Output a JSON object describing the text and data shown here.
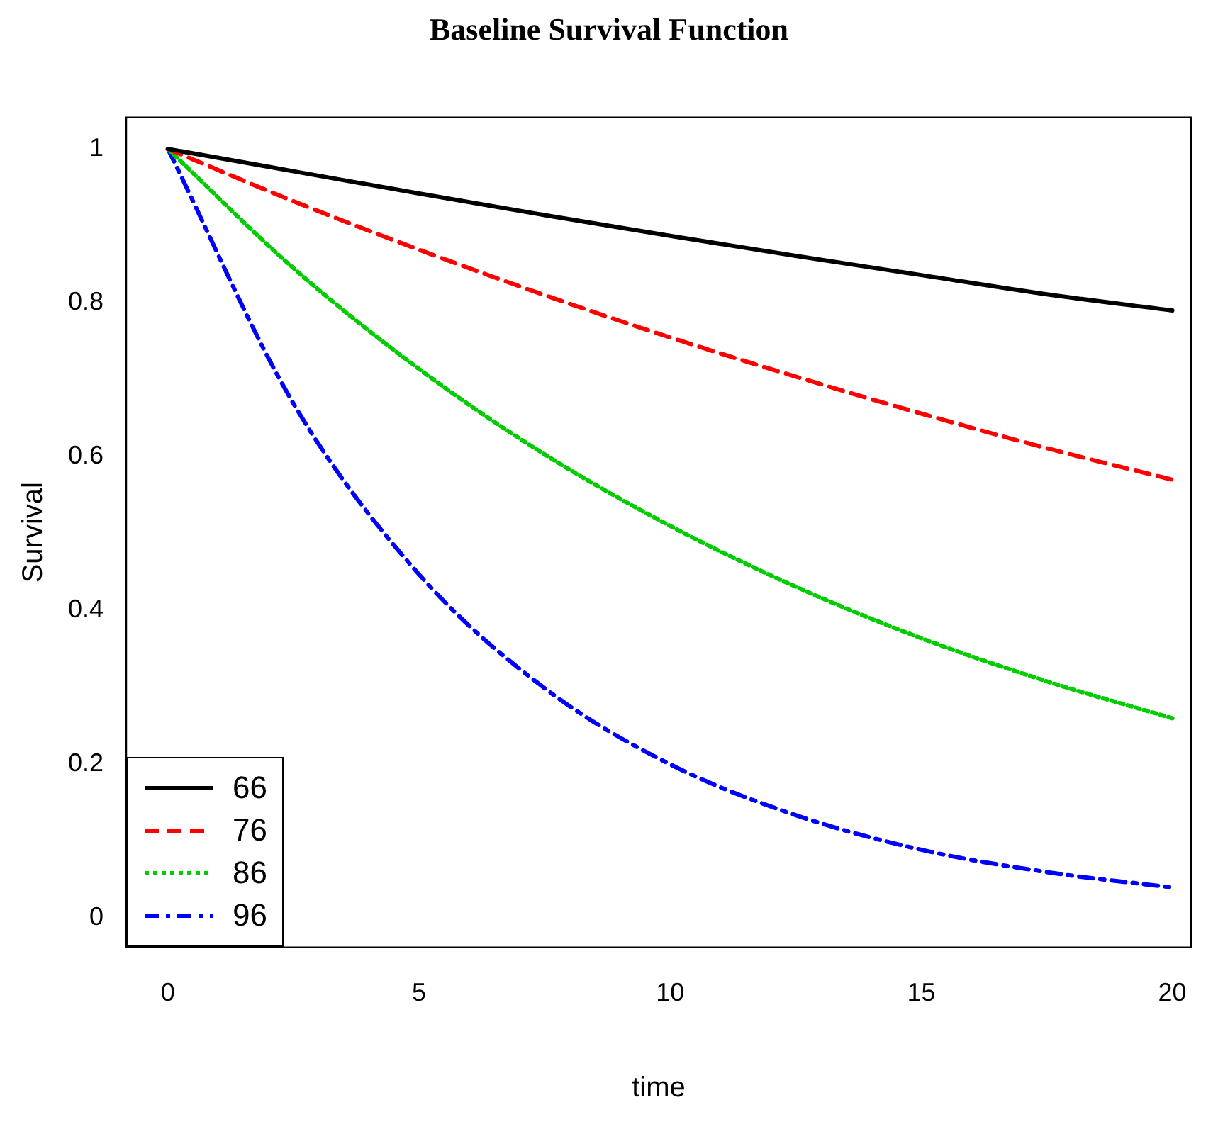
{
  "chart_data": {
    "type": "line",
    "title": "Baseline Survival Function",
    "xlabel": "time",
    "ylabel": "Survival",
    "xlim": [
      -0.83,
      20.37
    ],
    "ylim": [
      -0.038,
      1.041
    ],
    "xticks": [
      0,
      5,
      10,
      15,
      20
    ],
    "yticks": [
      0.0,
      0.2,
      0.4,
      0.6,
      0.8,
      1.0
    ],
    "grid": false,
    "legend": "bottom left",
    "marker": "none",
    "x": [
      0,
      2.5,
      5,
      7.5,
      10,
      12.5,
      15,
      17.5,
      20
    ],
    "series": [
      {
        "name": "66",
        "color": "#000000",
        "line_style": "solid",
        "values": [
          1,
          0.971,
          0.942,
          0.914,
          0.887,
          0.861,
          0.836,
          0.811,
          0.79
        ]
      },
      {
        "name": "76",
        "color": "#ff0000",
        "line_style": "dashed",
        "values": [
          1,
          0.932,
          0.869,
          0.81,
          0.755,
          0.704,
          0.656,
          0.611,
          0.57
        ]
      },
      {
        "name": "86",
        "color": "#00cc00",
        "line_style": "dotted",
        "values": [
          1,
          0.845,
          0.714,
          0.603,
          0.51,
          0.431,
          0.364,
          0.308,
          0.26
        ]
      },
      {
        "name": "96",
        "color": "#0000ff",
        "line_style": "dashdot",
        "values": [
          1,
          0.669,
          0.447,
          0.299,
          0.2,
          0.134,
          0.089,
          0.06,
          0.04
        ]
      }
    ]
  }
}
